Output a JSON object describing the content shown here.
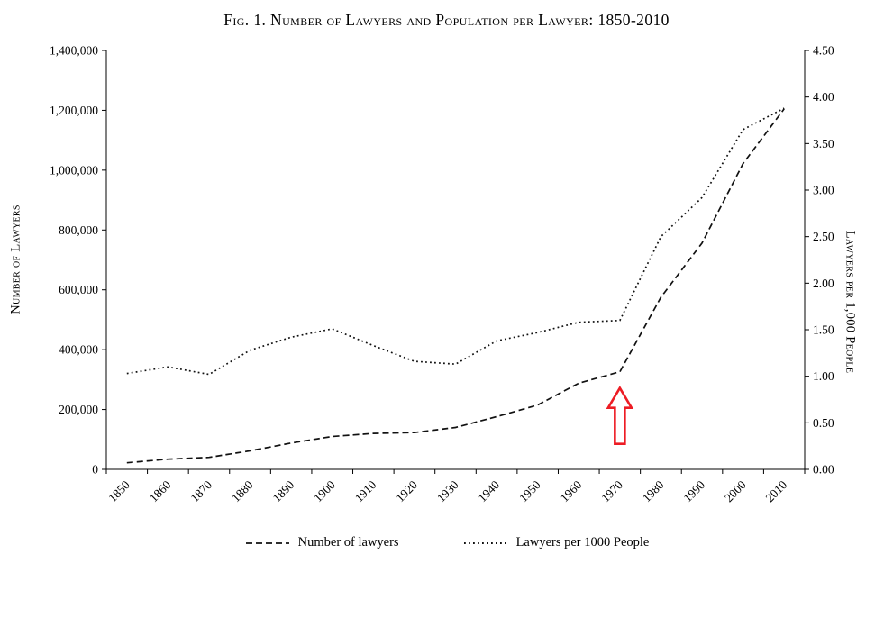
{
  "chart_data": {
    "type": "line",
    "title": "Fig. 1. Number of Lawyers and Population per Lawyer: 1850-2010",
    "grid": "off",
    "categories": [
      "1850",
      "1860",
      "1870",
      "1880",
      "1890",
      "1900",
      "1910",
      "1920",
      "1930",
      "1940",
      "1950",
      "1960",
      "1970",
      "1980",
      "1990",
      "2000",
      "2010"
    ],
    "series": [
      {
        "name": "Number of lawyers",
        "axis": "left",
        "line_style": "dashed",
        "color": "#111111",
        "values": [
          22000,
          34000,
          40000,
          62000,
          88000,
          110000,
          120000,
          123000,
          140000,
          176000,
          215000,
          288000,
          326000,
          575000,
          756000,
          1022000,
          1205000
        ]
      },
      {
        "name": "Lawyers per 1000 People",
        "axis": "right",
        "line_style": "dotted",
        "color": "#111111",
        "values": [
          1.03,
          1.1,
          1.02,
          1.28,
          1.42,
          1.51,
          1.33,
          1.16,
          1.13,
          1.38,
          1.47,
          1.58,
          1.6,
          2.5,
          2.92,
          3.65,
          3.88
        ]
      }
    ],
    "left_axis": {
      "label": "Number of Lawyers",
      "min": 0,
      "max": 1400000,
      "step": 200000,
      "tick_labels": [
        "0",
        "200,000",
        "400,000",
        "600,000",
        "800,000",
        "1,000,000",
        "1,200,000",
        "1,400,000"
      ]
    },
    "right_axis": {
      "label": "Lawyers per 1,000 People",
      "min": 0,
      "max": 4.5,
      "step": 0.5,
      "tick_labels": [
        "0.00",
        "0.50",
        "1.00",
        "1.50",
        "2.00",
        "2.50",
        "3.00",
        "3.50",
        "4.00",
        "4.50"
      ]
    },
    "legend": {
      "position": "bottom",
      "entries": [
        "Number of lawyers",
        "Lawyers per 1000 People"
      ]
    },
    "annotation": {
      "type": "up-arrow",
      "color": "#ed1c24",
      "at_category": "1970",
      "points_to_series": "Number of lawyers"
    }
  }
}
